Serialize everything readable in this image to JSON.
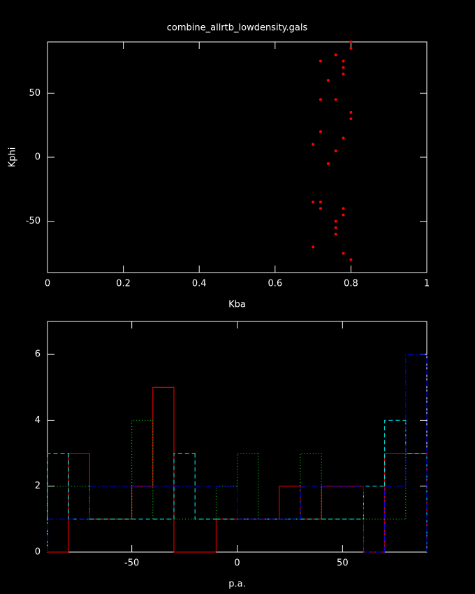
{
  "chart_data": [
    {
      "type": "scatter",
      "title": "combine_allrtb_lowdensity.gals",
      "x_label": "Kba",
      "y_label": "Kphi",
      "xlim": [
        0,
        1
      ],
      "xticks": [
        0,
        0.2,
        0.4,
        0.6,
        0.8,
        1
      ],
      "ylim": [
        -90,
        90
      ],
      "yticks": [
        -50,
        0,
        50
      ],
      "series": [
        {
          "color": "#ff0000",
          "x": [
            0.8,
            0.8,
            0.76,
            0.72,
            0.78,
            0.78,
            0.78,
            0.74,
            0.72,
            0.76,
            0.8,
            0.8,
            0.72,
            0.78,
            0.7,
            0.76,
            0.74,
            0.7,
            0.72,
            0.72,
            0.78,
            0.78,
            0.76,
            0.76,
            0.76,
            0.7,
            0.78,
            0.8
          ],
          "values": [
            90,
            85,
            80,
            75,
            75,
            70,
            65,
            60,
            45,
            45,
            35,
            30,
            20,
            15,
            10,
            5,
            -5,
            -35,
            -35,
            -40,
            -40,
            -45,
            -50,
            -55,
            -60,
            -70,
            -75,
            -80
          ]
        }
      ]
    },
    {
      "type": "histogram",
      "x_label": "p.a.",
      "bins": [
        -90,
        -80,
        -70,
        -60,
        -50,
        -40,
        -30,
        -20,
        -10,
        0,
        10,
        20,
        30,
        40,
        50,
        60,
        70,
        80,
        90
      ],
      "xlim": [
        -90,
        90
      ],
      "xticks": [
        -50,
        0,
        50
      ],
      "ylim": [
        0,
        7
      ],
      "yticks": [
        0,
        2,
        4,
        6
      ],
      "series": [
        {
          "color": "#ff0000",
          "dash": "solid",
          "values": [
            0,
            3,
            1,
            1,
            2,
            5,
            0,
            0,
            1,
            1,
            1,
            2,
            1,
            2,
            2,
            0,
            3,
            3
          ]
        },
        {
          "color": "#00ff00",
          "dash": "dotted",
          "values": [
            2,
            2,
            1,
            1,
            4,
            1,
            1,
            1,
            2,
            3,
            1,
            1,
            3,
            1,
            1,
            1,
            1,
            3
          ]
        },
        {
          "color": "#00ffff",
          "dash": "dashed",
          "values": [
            3,
            1,
            1,
            1,
            1,
            1,
            3,
            1,
            1,
            1,
            1,
            1,
            1,
            1,
            1,
            2,
            4,
            3
          ]
        },
        {
          "color": "#0000ff",
          "dash": "dashdot",
          "values": [
            1,
            1,
            2,
            2,
            2,
            2,
            2,
            2,
            2,
            1,
            1,
            1,
            2,
            2,
            2,
            0,
            2,
            6
          ]
        }
      ]
    }
  ]
}
